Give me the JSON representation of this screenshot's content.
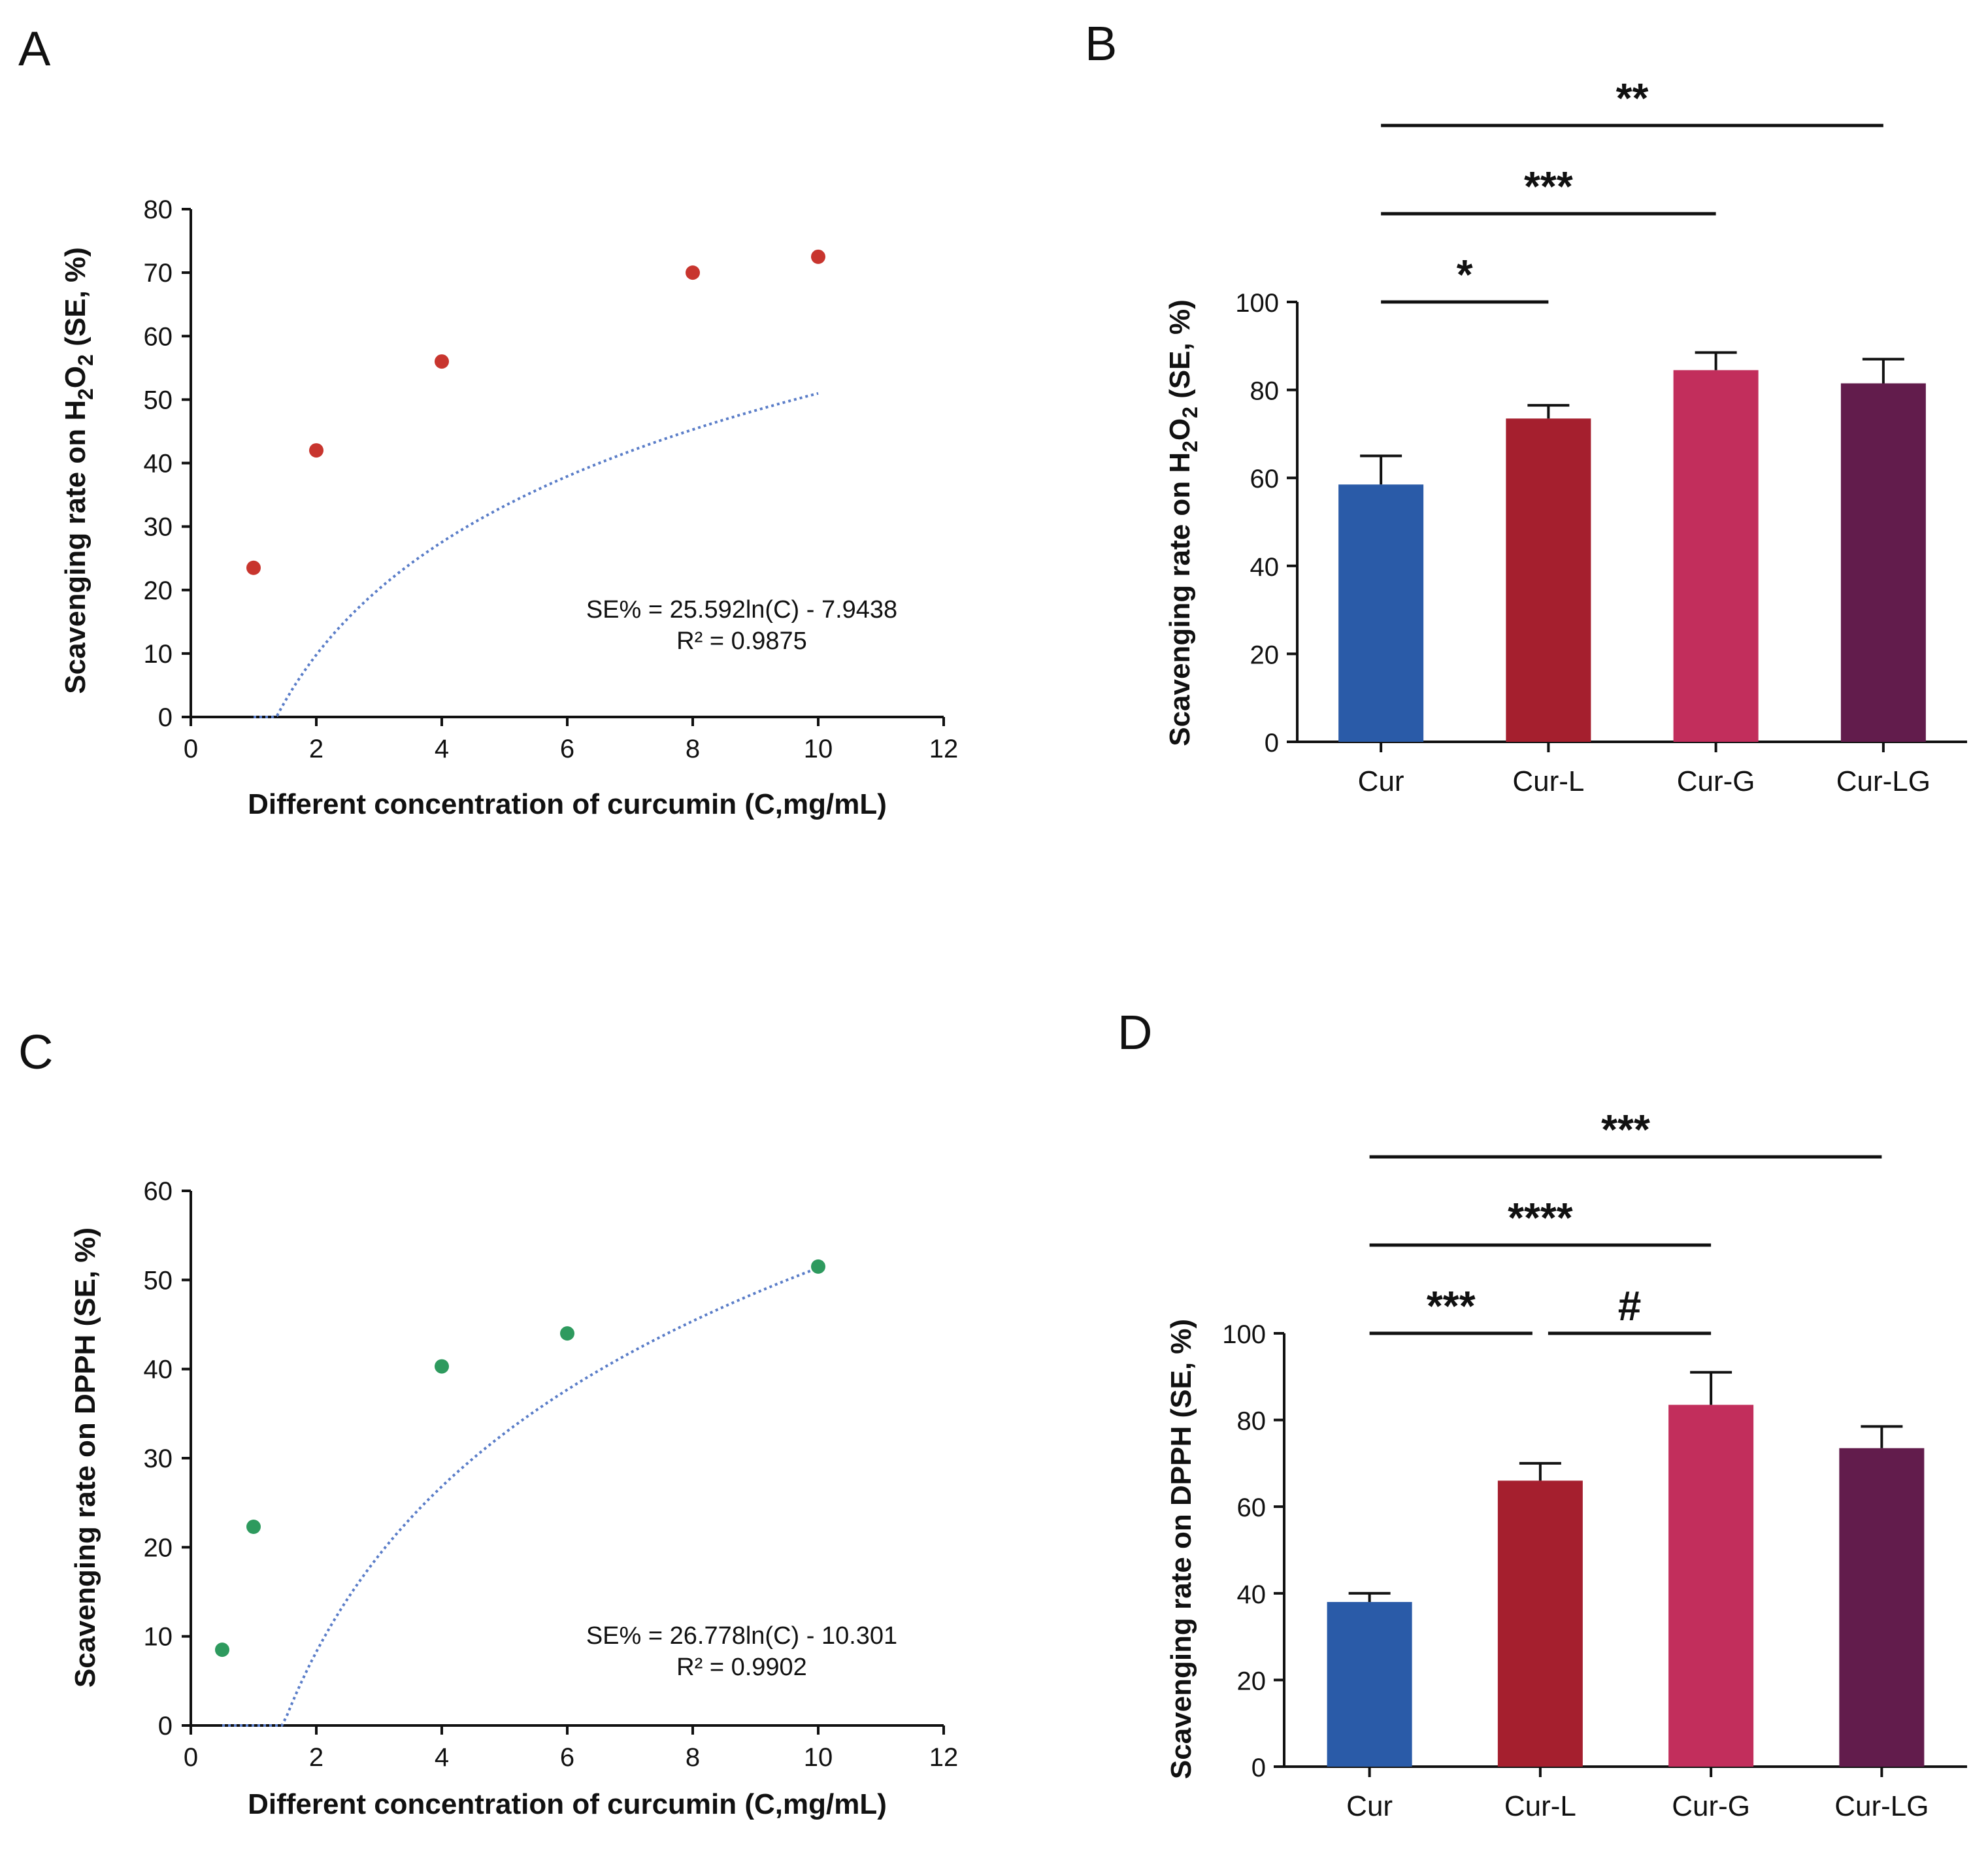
{
  "chart_data": [
    {
      "panel": "A",
      "type": "scatter",
      "x": [
        1,
        2,
        4,
        8,
        10
      ],
      "y": [
        23.5,
        42,
        56,
        70,
        72.5
      ],
      "point_color": "#c8352e",
      "fit": {
        "type": "log",
        "a": 25.592,
        "b": -7.9438
      },
      "equation": "SE% = 25.592ln(C) - 7.9438",
      "r2": "R² = 0.9875",
      "xlabel": "Different concentration of curcumin (C,mg/mL)",
      "ylabel": {
        "pre": "Scavenging rate on H",
        "sub1": "2",
        "mid": "O",
        "sub2": "2",
        "post": " (SE, %)"
      },
      "xlim": [
        0,
        12
      ],
      "ylim": [
        0,
        80
      ],
      "xticks": [
        "0",
        "2",
        "4",
        "6",
        "8",
        "10",
        "12"
      ],
      "yticks": [
        "0",
        "10",
        "20",
        "30",
        "40",
        "50",
        "60",
        "70",
        "80"
      ]
    },
    {
      "panel": "B",
      "type": "bar",
      "categories": [
        "Cur",
        "Cur-L",
        "Cur-G",
        "Cur-LG"
      ],
      "values": [
        58.5,
        73.5,
        84.5,
        81.5
      ],
      "errors": [
        6.5,
        3,
        4,
        5.5
      ],
      "colors": [
        "#2a5ba8",
        "#a51f2e",
        "#c22e5c",
        "#621c4c"
      ],
      "ylabel": {
        "pre": "Scavenging rate on H",
        "sub1": "2",
        "mid": "O",
        "sub2": "2",
        "post": "  (SE, %)"
      },
      "ylim": [
        0,
        100
      ],
      "yticks": [
        "0",
        "20",
        "40",
        "60",
        "80",
        "100"
      ],
      "significance": [
        {
          "from": 0,
          "to": 1,
          "label": "*"
        },
        {
          "from": 0,
          "to": 2,
          "label": "***"
        },
        {
          "from": 0,
          "to": 3,
          "label": "**"
        }
      ]
    },
    {
      "panel": "C",
      "type": "scatter",
      "x": [
        0.5,
        1,
        4,
        6,
        10
      ],
      "y": [
        8.5,
        22.3,
        40.3,
        44,
        51.5
      ],
      "point_color": "#2e9a5e",
      "fit": {
        "type": "log",
        "a": 26.778,
        "b": -10.301
      },
      "equation": "SE% = 26.778ln(C) - 10.301",
      "r2": "R² = 0.9902",
      "xlabel": "Different concentration of curcumin (C,mg/mL)",
      "ylabel": {
        "text": "Scavenging rate on DPPH (SE, %)"
      },
      "xlim": [
        0,
        12
      ],
      "ylim": [
        0,
        60
      ],
      "xticks": [
        "0",
        "2",
        "4",
        "6",
        "8",
        "10",
        "12"
      ],
      "yticks": [
        "0",
        "10",
        "20",
        "30",
        "40",
        "50",
        "60"
      ]
    },
    {
      "panel": "D",
      "type": "bar",
      "categories": [
        "Cur",
        "Cur-L",
        "Cur-G",
        "Cur-LG"
      ],
      "values": [
        38,
        66,
        83.5,
        73.5
      ],
      "errors": [
        2,
        4,
        7.5,
        5
      ],
      "colors": [
        "#2a5ba8",
        "#a51f2e",
        "#c22e5c",
        "#621c4c"
      ],
      "ylabel": {
        "text": "Scavenging rate on DPPH  (SE, %)"
      },
      "ylim": [
        0,
        100
      ],
      "yticks": [
        "0",
        "20",
        "40",
        "60",
        "80",
        "100"
      ],
      "significance": [
        {
          "from": 0,
          "to": 1,
          "label": "***"
        },
        {
          "from": 1,
          "to": 2,
          "label": "#"
        },
        {
          "from": 0,
          "to": 2,
          "label": "****"
        },
        {
          "from": 0,
          "to": 3,
          "label": "***"
        }
      ]
    }
  ]
}
